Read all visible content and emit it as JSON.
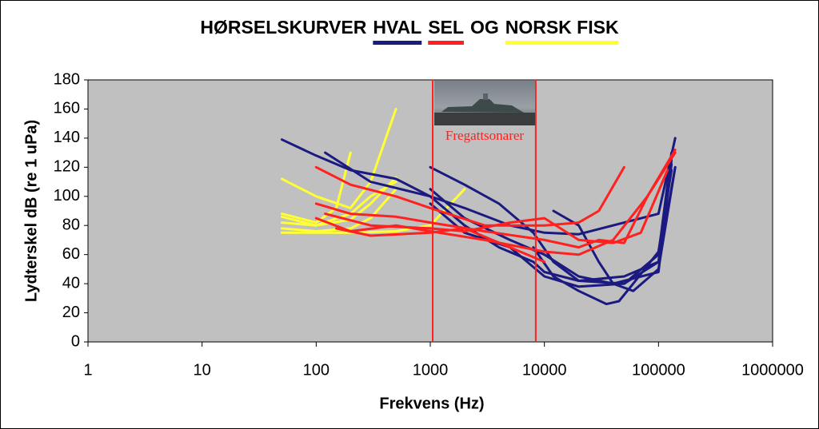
{
  "chart_data": {
    "type": "line",
    "title_parts": [
      {
        "text": "HØRSELSKURVER"
      },
      {
        "text": "HVAL",
        "underline": "#1a1a80"
      },
      {
        "text": "SEL",
        "underline": "#ff2020"
      },
      {
        "text": "OG"
      },
      {
        "text": "NORSK FISK",
        "underline": "#ffff33"
      }
    ],
    "x_label": "Frekvens (Hz)",
    "y_label": "Lydterskel dB (re 1 uPa)",
    "x_log": true,
    "xlim": [
      1,
      1000000
    ],
    "xticks": [
      1,
      10,
      100,
      1000,
      10000,
      100000,
      1000000
    ],
    "ylim": [
      0,
      180
    ],
    "yticks": [
      0,
      20,
      40,
      60,
      80,
      100,
      120,
      140,
      160,
      180
    ],
    "plot_background": "#c0c0c0",
    "vlines": [
      {
        "x": 1050,
        "color": "#ff2020"
      },
      {
        "x": 8400,
        "color": "#ff2020"
      }
    ],
    "annotation": "Fregattsonarer",
    "series": [
      {
        "color": "#ffff33",
        "x": [
          50,
          100,
          200,
          300,
          500
        ],
        "values": [
          112,
          100,
          92,
          110,
          160
        ]
      },
      {
        "color": "#ffff33",
        "x": [
          50,
          100,
          150,
          200
        ],
        "values": [
          88,
          82,
          92,
          130
        ]
      },
      {
        "color": "#ffff33",
        "x": [
          50,
          100,
          200,
          300,
          500
        ],
        "values": [
          86,
          80,
          84,
          95,
          113
        ]
      },
      {
        "color": "#ffff33",
        "x": [
          50,
          100,
          200,
          300,
          500
        ],
        "values": [
          82,
          80,
          88,
          100,
          110
        ]
      },
      {
        "color": "#ffff33",
        "x": [
          50,
          100,
          200,
          300,
          500
        ],
        "values": [
          78,
          76,
          78,
          85,
          105
        ]
      },
      {
        "color": "#ffff33",
        "x": [
          50,
          200,
          500,
          1000,
          2000
        ],
        "values": [
          75,
          75,
          76,
          80,
          105
        ]
      },
      {
        "color": "#1a1a80",
        "x": [
          50,
          100,
          200,
          500,
          1000,
          2000,
          5000,
          10000,
          20000,
          50000,
          100000,
          140000
        ],
        "values": [
          139,
          128,
          118,
          112,
          100,
          92,
          80,
          75,
          74,
          82,
          88,
          140
        ]
      },
      {
        "color": "#1a1a80",
        "x": [
          120,
          300,
          1000,
          2000,
          4000,
          8000,
          10000,
          20000,
          50000,
          100000,
          130000
        ],
        "values": [
          130,
          110,
          100,
          80,
          65,
          55,
          48,
          42,
          45,
          55,
          122
        ]
      },
      {
        "color": "#1a1a80",
        "x": [
          1000,
          2000,
          4000,
          8000,
          12000,
          20000,
          50000,
          100000,
          130000
        ],
        "values": [
          120,
          108,
          95,
          75,
          55,
          42,
          40,
          60,
          130
        ]
      },
      {
        "color": "#1a1a80",
        "x": [
          1000,
          2000,
          5000,
          10000,
          20000,
          40000,
          100000,
          130000
        ],
        "values": [
          105,
          85,
          70,
          60,
          45,
          40,
          48,
          125
        ]
      },
      {
        "color": "#1a1a80",
        "x": [
          1000,
          2000,
          5000,
          10000,
          20000,
          50000,
          100000,
          140000
        ],
        "values": [
          95,
          75,
          65,
          45,
          38,
          40,
          55,
          120
        ]
      },
      {
        "color": "#1a1a80",
        "x": [
          12000,
          20000,
          30000,
          40000,
          60000,
          100000,
          140000
        ],
        "values": [
          90,
          80,
          55,
          40,
          35,
          50,
          120
        ]
      },
      {
        "color": "#1a1a80",
        "x": [
          8000,
          12000,
          20000,
          35000,
          45000,
          60000,
          100000,
          130000
        ],
        "values": [
          65,
          45,
          35,
          26,
          28,
          40,
          62,
          118
        ]
      },
      {
        "color": "#ff2020",
        "x": [
          100,
          200,
          500,
          1000,
          3000,
          10000,
          20000,
          30000,
          50000
        ],
        "values": [
          120,
          108,
          100,
          92,
          80,
          80,
          82,
          90,
          120
        ]
      },
      {
        "color": "#ff2020",
        "x": [
          100,
          200,
          500,
          1000,
          3000,
          10000,
          20000,
          30000,
          50000,
          80000,
          140000
        ],
        "values": [
          95,
          88,
          86,
          82,
          76,
          70,
          65,
          70,
          68,
          100,
          132
        ]
      },
      {
        "color": "#ff2020",
        "x": [
          120,
          300,
          1000,
          2000,
          5000,
          10000,
          20000,
          40000,
          70000,
          120000
        ],
        "values": [
          88,
          80,
          78,
          76,
          82,
          85,
          70,
          68,
          75,
          118
        ]
      },
      {
        "color": "#ff2020",
        "x": [
          100,
          200,
          500,
          1000,
          3000,
          10000,
          20000,
          40000,
          80000,
          140000
        ],
        "values": [
          85,
          76,
          80,
          76,
          70,
          62,
          60,
          70,
          100,
          130
        ]
      },
      {
        "color": "#ff2020",
        "x": [
          150,
          300,
          1000,
          2000,
          5000,
          10000
        ],
        "values": [
          78,
          73,
          75,
          78,
          65,
          55
        ]
      }
    ]
  }
}
